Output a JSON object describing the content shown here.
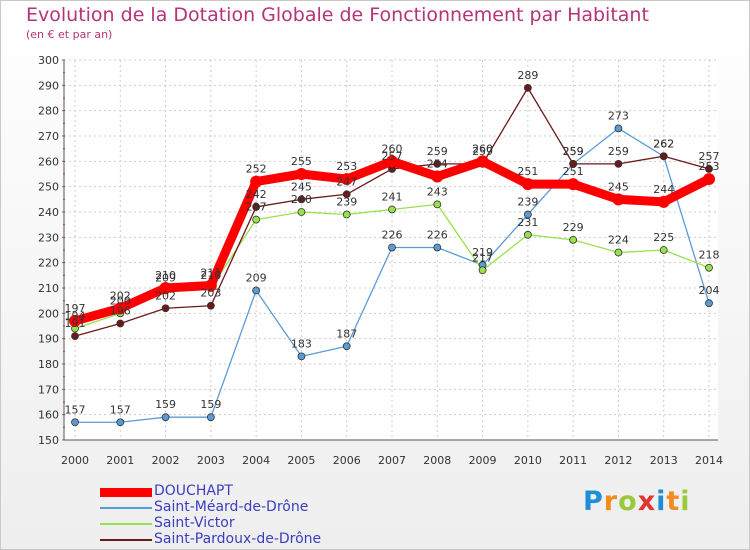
{
  "chart_data": {
    "type": "line",
    "title": "Evolution de la Dotation Globale de Fonctionnement par Habitant",
    "subtitle": "(en € et par an)",
    "xlabel": "",
    "ylabel": "",
    "x": [
      "2000",
      "2001",
      "2002",
      "2003",
      "2004",
      "2005",
      "2006",
      "2007",
      "2008",
      "2009",
      "2010",
      "2011",
      "2012",
      "2013",
      "2014"
    ],
    "ylim": [
      150,
      300
    ],
    "yticks": [
      "150",
      "160",
      "170",
      "180",
      "190",
      "200",
      "210",
      "220",
      "230",
      "240",
      "250",
      "260",
      "270",
      "280",
      "290",
      "300"
    ],
    "grid": true,
    "legend_position": "bottom-left",
    "series": [
      {
        "name": "DOUCHAPT",
        "color": "#ff0000",
        "values": [
          197,
          202,
          210,
          211,
          252,
          255,
          253,
          260,
          254,
          260,
          251,
          251,
          245,
          244,
          253
        ]
      },
      {
        "name": "Saint-Méard-de-Drône",
        "color": "#5b9bd5",
        "values": [
          157,
          157,
          159,
          159,
          209,
          183,
          187,
          226,
          226,
          219,
          239,
          259,
          273,
          262,
          204
        ]
      },
      {
        "name": "Saint-Victor",
        "color": "#99e04d",
        "values": [
          194,
          200,
          209,
          210,
          237,
          240,
          239,
          241,
          243,
          217,
          231,
          229,
          224,
          225,
          218
        ]
      },
      {
        "name": "Saint-Pardoux-de-Drône",
        "color": "#6b1a1a",
        "values": [
          191,
          196,
          202,
          203,
          242,
          245,
          247,
          257,
          259,
          259,
          289,
          259,
          259,
          262,
          257
        ]
      }
    ]
  },
  "logo": {
    "letters": [
      "P",
      "r",
      "o",
      "x",
      "i",
      "t",
      "i"
    ],
    "colors": [
      "#1e8fd6",
      "#f28c1e",
      "#9ac93b",
      "#e3342f",
      "#1e8fd6",
      "#f28c1e",
      "#9ac93b"
    ]
  }
}
